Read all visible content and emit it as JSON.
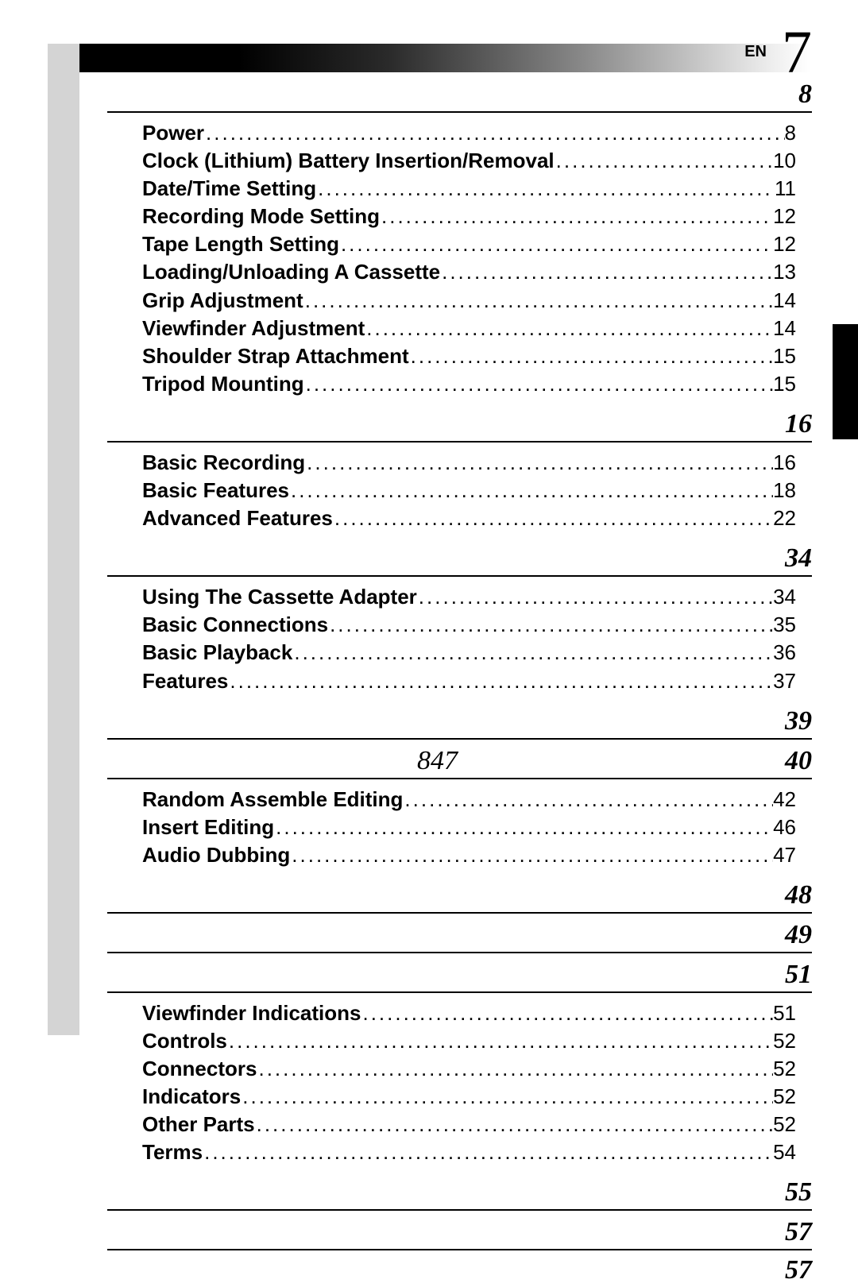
{
  "page": {
    "lang": "EN",
    "number": "7"
  },
  "sections": [
    {
      "page": "8",
      "entries": [
        {
          "label": "Power",
          "pg": "8"
        },
        {
          "label": "Clock (Lithium) Battery Insertion/Removal",
          "pg": "10"
        },
        {
          "label": "Date/Time Setting",
          "pg": "11"
        },
        {
          "label": "Recording Mode Setting",
          "pg": "12"
        },
        {
          "label": "Tape Length Setting",
          "pg": "12"
        },
        {
          "label": "Loading/Unloading A Cassette",
          "pg": "13"
        },
        {
          "label": "Grip Adjustment",
          "pg": "14"
        },
        {
          "label": "Viewfinder Adjustment",
          "pg": "14"
        },
        {
          "label": "Shoulder Strap Attachment",
          "pg": "15"
        },
        {
          "label": "Tripod Mounting",
          "pg": "15"
        }
      ]
    },
    {
      "page": "16",
      "entries": [
        {
          "label": "Basic Recording",
          "pg": "16"
        },
        {
          "label": "Basic Features",
          "pg": "18"
        },
        {
          "label": "Advanced Features",
          "pg": "22"
        }
      ]
    },
    {
      "page": "34",
      "entries": [
        {
          "label": "Using The Cassette Adapter",
          "pg": "34"
        },
        {
          "label": "Basic Connections",
          "pg": "35"
        },
        {
          "label": "Basic Playback",
          "pg": "36"
        },
        {
          "label": "Features",
          "pg": "37"
        }
      ]
    },
    {
      "page": "39",
      "entries": []
    },
    {
      "page": "40",
      "model": "847",
      "entries": [
        {
          "label": "Random Assemble Editing",
          "pg": "42"
        },
        {
          "label": "Insert Editing",
          "pg": "46"
        },
        {
          "label": "Audio Dubbing",
          "pg": "47"
        }
      ]
    },
    {
      "page": "48",
      "entries": []
    },
    {
      "page": "49",
      "entries": []
    },
    {
      "page": "51",
      "entries": [
        {
          "label": "Viewfinder Indications",
          "pg": "51"
        },
        {
          "label": "Controls",
          "pg": "52"
        },
        {
          "label": "Connectors",
          "pg": "52"
        },
        {
          "label": "Indicators",
          "pg": "52"
        },
        {
          "label": "Other Parts",
          "pg": "52"
        },
        {
          "label": "Terms",
          "pg": "54"
        }
      ]
    },
    {
      "page": "55",
      "entries": []
    },
    {
      "page": "57",
      "entries": []
    },
    {
      "page": "57",
      "entries": [],
      "norule": true
    }
  ],
  "style": {
    "dot_char": "."
  }
}
